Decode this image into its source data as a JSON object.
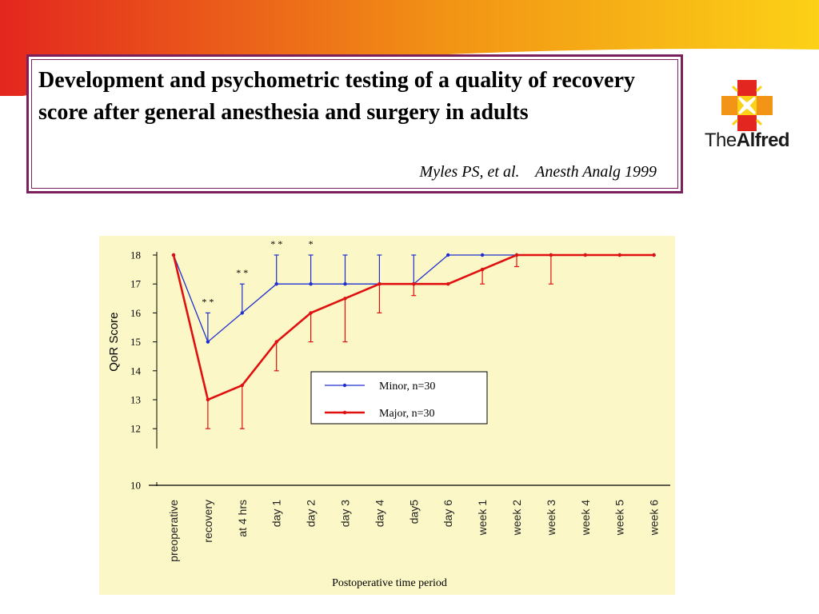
{
  "slide": {
    "title": "Development and psychometric testing of a quality of recovery score after general anesthesia and surgery in adults",
    "citation": "Myles PS, et al.    Anesth Analg 1999",
    "logo_text_prefix": "The",
    "logo_text_bold": "Alfred"
  },
  "colors": {
    "accent_red": "#e3261f",
    "accent_orange": "#f29415",
    "accent_yellow": "#fcd116",
    "title_border": "#7b1f5d",
    "chart_background": "#fbf7c6",
    "minor_series": "#1f2fd1",
    "major_series": "#e01010"
  },
  "chart_data": {
    "type": "line",
    "title": "",
    "xlabel": "Postoperative time period",
    "ylabel": "QoR Score",
    "categories": [
      "preoperative",
      "recovery",
      "at 4 hrs",
      "day 1",
      "day 2",
      "day 3",
      "day 4",
      "day5",
      "day 6",
      "week 1",
      "week 2",
      "week 3",
      "week 4",
      "week 5",
      "week 6"
    ],
    "yticks": [
      10,
      12,
      13,
      14,
      15,
      16,
      17,
      18
    ],
    "ylim": [
      10,
      18
    ],
    "axis_break": true,
    "legend_position": "center-right",
    "series": [
      {
        "name": "Minor, n=30",
        "color": "#1f2fd1",
        "values": [
          18,
          15,
          16,
          17,
          17,
          17,
          17,
          17,
          18,
          18,
          18,
          18,
          18,
          18,
          18
        ],
        "error_upper": [
          18,
          16,
          17,
          18,
          18,
          18,
          18,
          18,
          18,
          18,
          18,
          18,
          18,
          18,
          18
        ]
      },
      {
        "name": "Major, n=30",
        "color": "#e01010",
        "values": [
          18,
          13,
          13.5,
          15,
          16,
          16.5,
          17,
          17,
          17,
          17.5,
          18,
          18,
          18,
          18,
          18
        ],
        "error_lower": [
          18,
          12,
          12,
          14,
          15,
          15,
          16,
          16.6,
          17,
          17,
          17.6,
          17,
          18,
          18,
          18
        ]
      }
    ],
    "annotations": [
      {
        "text": "* *",
        "category": "recovery"
      },
      {
        "text": "* *",
        "category": "at 4 hrs"
      },
      {
        "text": "* *",
        "category": "day 1"
      },
      {
        "text": "*",
        "category": "day 2"
      }
    ]
  }
}
